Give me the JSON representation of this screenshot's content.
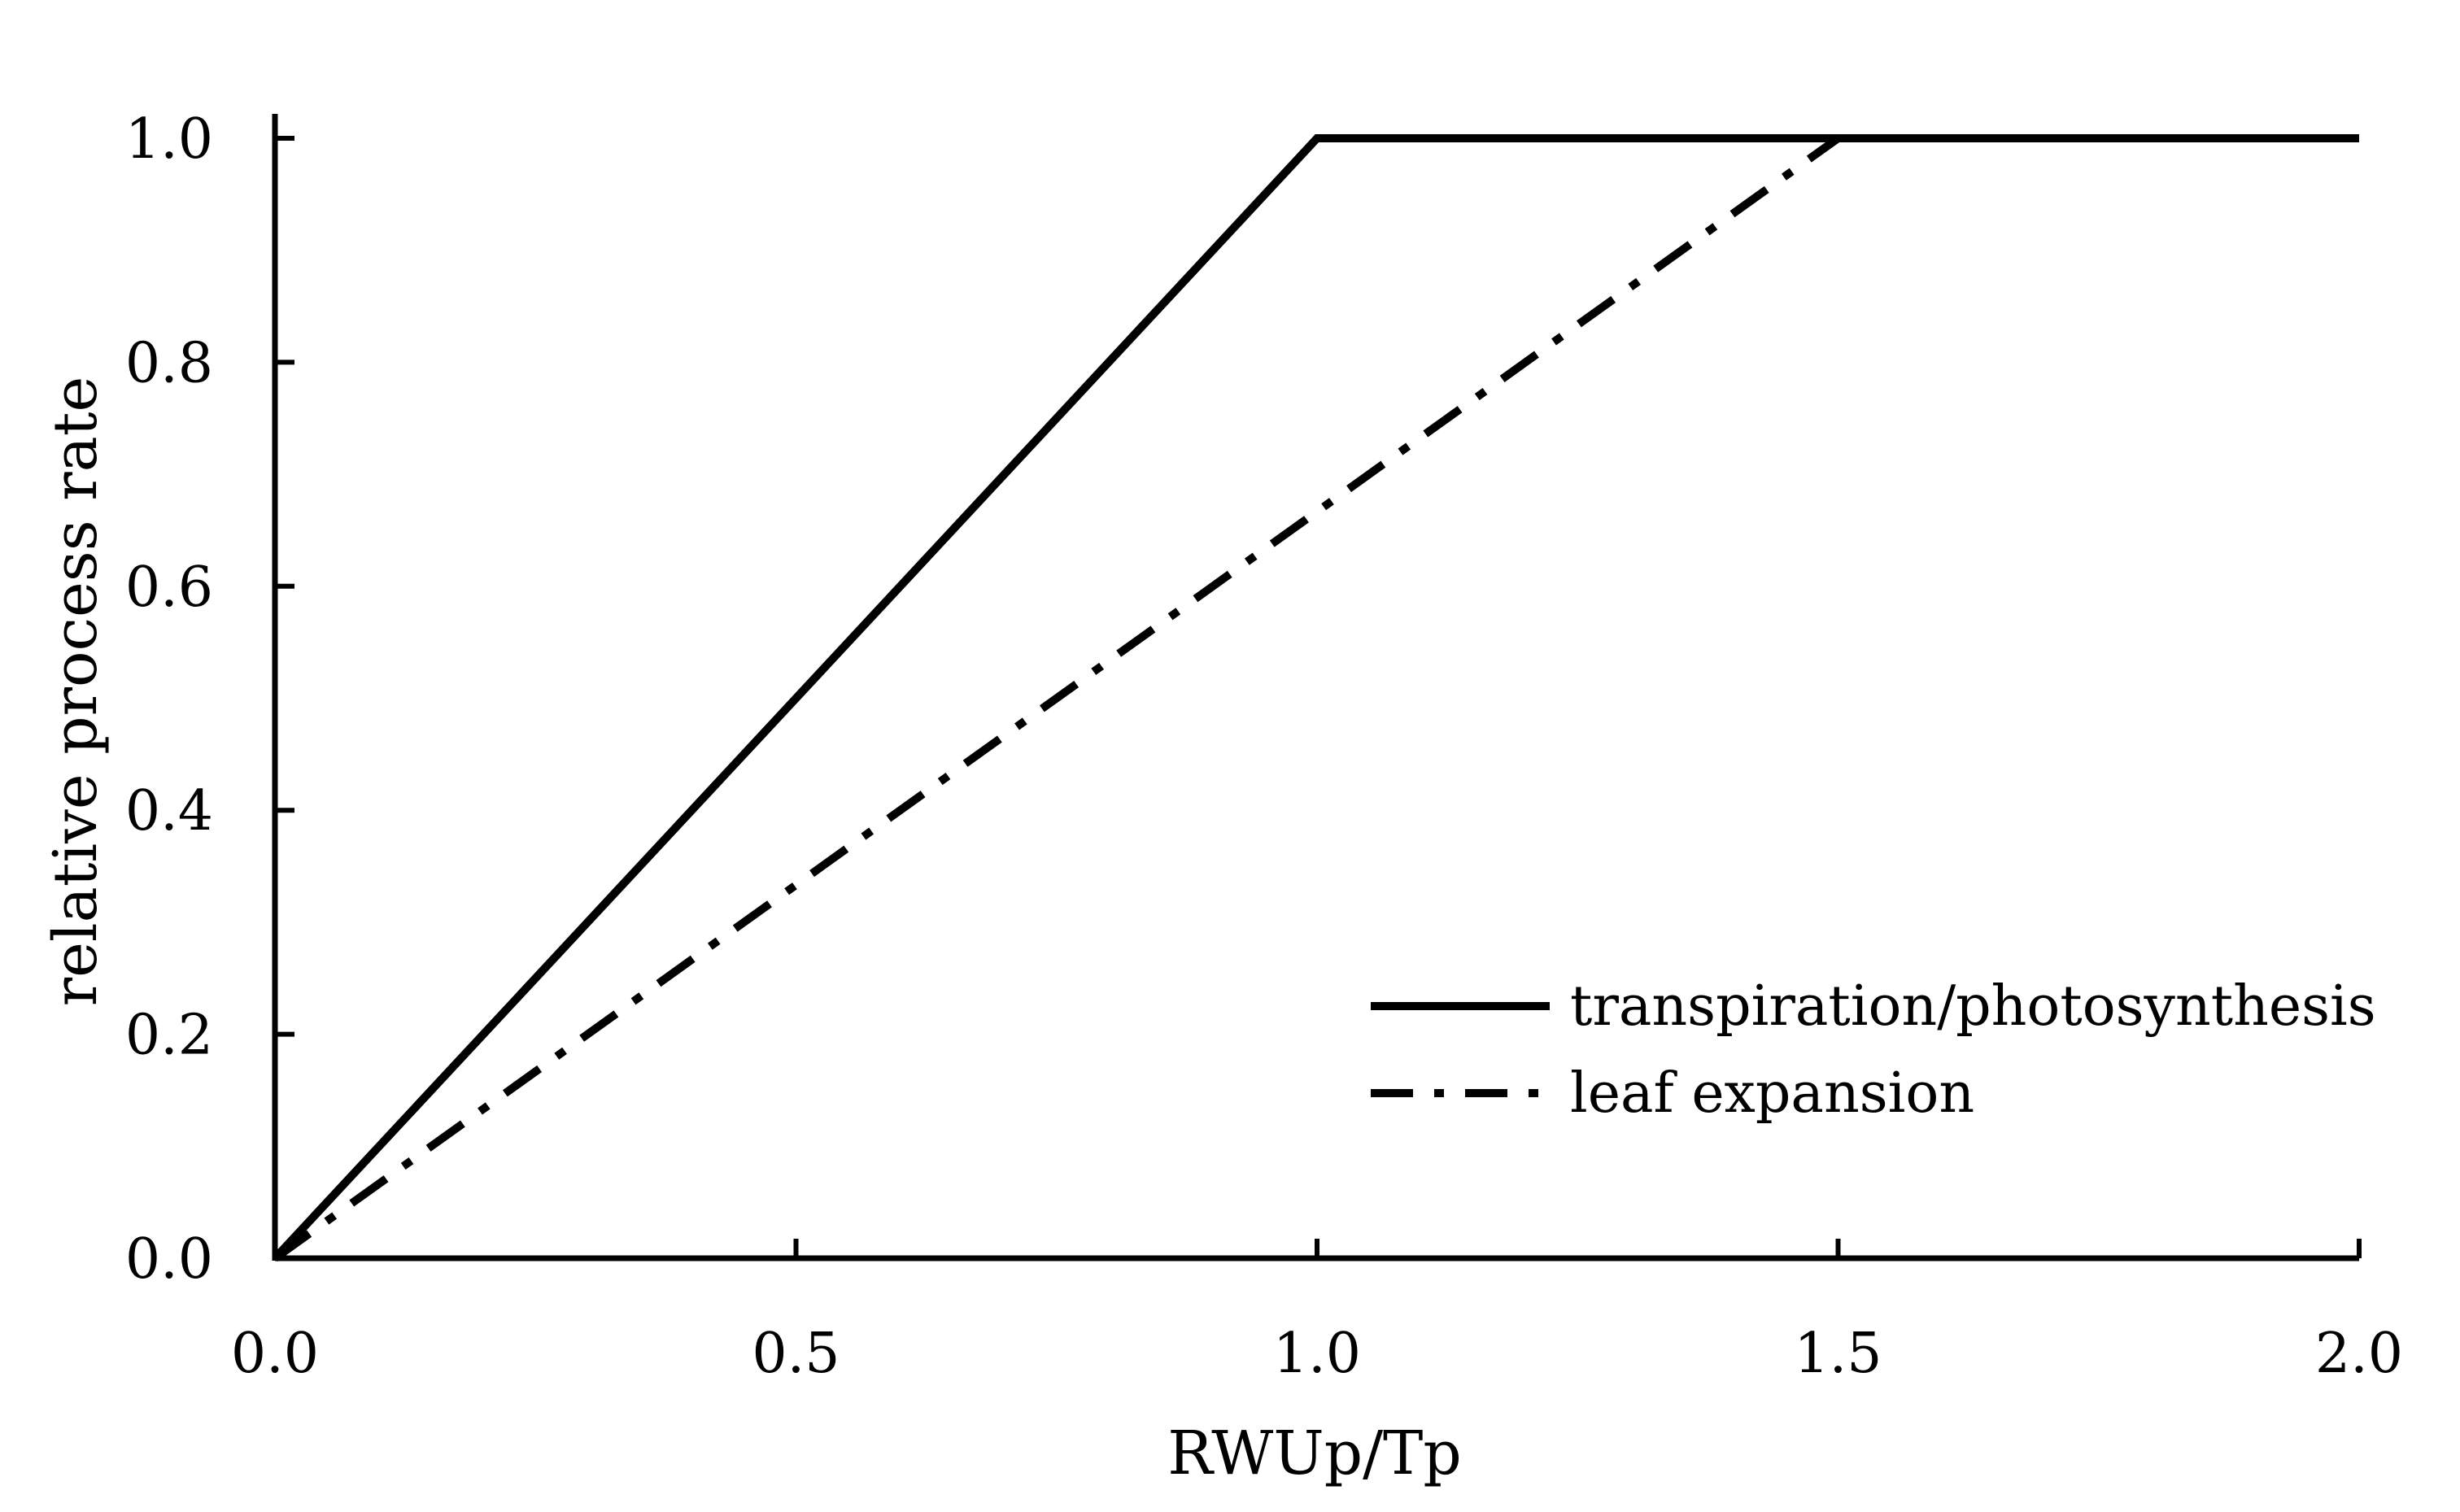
{
  "chart_data": {
    "type": "line",
    "title": "",
    "xlabel": "RWUp/Tp",
    "ylabel": "relative process rate",
    "xlim": [
      0,
      2
    ],
    "ylim": [
      0,
      1
    ],
    "x_ticks": [
      "0.0",
      "0.5",
      "1.0",
      "1.5",
      "2.0"
    ],
    "y_ticks": [
      "0.0",
      "0.2",
      "0.4",
      "0.6",
      "0.8",
      "1.0"
    ],
    "grid": false,
    "legend_position": "bottom-right",
    "series": [
      {
        "name": "transpiration/photosynthesis",
        "line_style": "solid",
        "color": "#000000",
        "points": [
          {
            "x": 0,
            "y": 0
          },
          {
            "x": 1.0,
            "y": 1.0
          },
          {
            "x": 2.0,
            "y": 1.0
          }
        ]
      },
      {
        "name": "leaf expansion",
        "line_style": "dash-dot",
        "color": "#000000",
        "points": [
          {
            "x": 0,
            "y": 0
          },
          {
            "x": 1.5,
            "y": 1.0
          },
          {
            "x": 2.0,
            "y": 1.0
          }
        ]
      }
    ]
  }
}
